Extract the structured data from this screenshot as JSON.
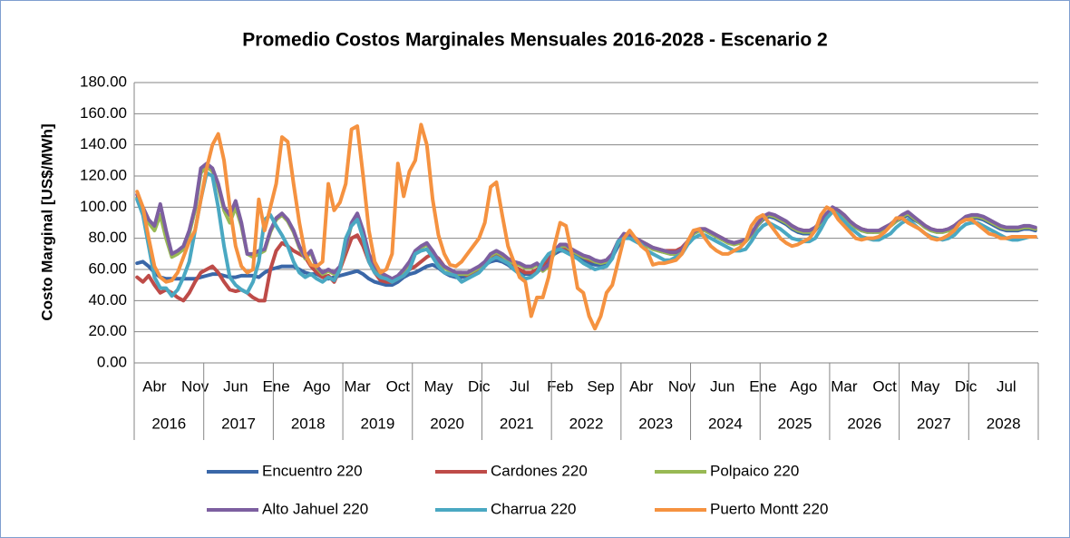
{
  "chart_data": {
    "type": "line",
    "title": "Promedio Costos Marginales Mensuales 2016-2028 - Escenario 2",
    "y_label": "Costo Marginal [US$/MWh]",
    "categories": [
      null,
      null,
      null,
      "Abr",
      null,
      null,
      null,
      null,
      null,
      null,
      "Nov",
      null,
      null,
      null,
      null,
      null,
      null,
      "Jun",
      null,
      null,
      null,
      null,
      null,
      null,
      "Ene",
      null,
      null,
      null,
      null,
      null,
      null,
      "Ago",
      null,
      null,
      null,
      null,
      null,
      null,
      "Mar",
      null,
      null,
      null,
      null,
      null,
      null,
      "Oct",
      null,
      null,
      null,
      null,
      null,
      null,
      "May",
      null,
      null,
      null,
      null,
      null,
      null,
      "Dic",
      null,
      null,
      null,
      null,
      null,
      null,
      "Jul",
      null,
      null,
      null,
      null,
      null,
      null,
      "Feb",
      null,
      null,
      null,
      null,
      null,
      null,
      "Sep",
      null,
      null,
      null,
      null,
      null,
      null,
      "Abr",
      null,
      null,
      null,
      null,
      null,
      null,
      "Nov",
      null,
      null,
      null,
      null,
      null,
      null,
      "Jun",
      null,
      null,
      null,
      null,
      null,
      null,
      "Ene",
      null,
      null,
      null,
      null,
      null,
      null,
      "Ago",
      null,
      null,
      null,
      null,
      null,
      null,
      "Mar",
      null,
      null,
      null,
      null,
      null,
      null,
      "Oct",
      null,
      null,
      null,
      null,
      null,
      null,
      "May",
      null,
      null,
      null,
      null,
      null,
      null,
      "Dic",
      null,
      null,
      null,
      null,
      null,
      null,
      "Jul",
      null,
      null,
      null,
      null,
      null
    ],
    "year_groups": [
      "2016",
      "2017",
      "2018",
      "2019",
      "2020",
      "2021",
      "2022",
      "2023",
      "2024",
      "2025",
      "2026",
      "2027",
      "2028"
    ],
    "ylim": [
      0,
      180
    ],
    "yticks": [
      {
        "value": 0,
        "label": "0.00"
      },
      {
        "value": 20,
        "label": "20.00"
      },
      {
        "value": 40,
        "label": "40.00"
      },
      {
        "value": 60,
        "label": "60.00"
      },
      {
        "value": 80,
        "label": "80.00"
      },
      {
        "value": 100,
        "label": "100.00"
      },
      {
        "value": 120,
        "label": "120.00"
      },
      {
        "value": 140,
        "label": "140.00"
      },
      {
        "value": 160,
        "label": "160.00"
      },
      {
        "value": 180,
        "label": "180.00"
      }
    ],
    "grid": true,
    "series": [
      {
        "name": "Encuentro 220",
        "color": "#3a67a8",
        "values": [
          64,
          65,
          62,
          58,
          55,
          54,
          54,
          54,
          54,
          54,
          54,
          55,
          56,
          57,
          57,
          56,
          55,
          55,
          56,
          56,
          56,
          55,
          58,
          60,
          61,
          62,
          62,
          62,
          60,
          58,
          57,
          57,
          55,
          54,
          55,
          56,
          57,
          58,
          59,
          57,
          54,
          52,
          51,
          50,
          50,
          52,
          55,
          57,
          58,
          60,
          62,
          63,
          61,
          58,
          56,
          55,
          55,
          56,
          58,
          60,
          63,
          65,
          66,
          65,
          63,
          60,
          58,
          57,
          57,
          58,
          62,
          66,
          70,
          72,
          72,
          70,
          68,
          66,
          64,
          63,
          63,
          64,
          68,
          75,
          82,
          83,
          80,
          78,
          76,
          74,
          72,
          71,
          70,
          70,
          72,
          78,
          83,
          85,
          85,
          83,
          81,
          79,
          78,
          77,
          77,
          78,
          82,
          88,
          92,
          94,
          93,
          91,
          89,
          86,
          84,
          83,
          83,
          85,
          90,
          95,
          98,
          97,
          94,
          90,
          87,
          85,
          84,
          84,
          84,
          86,
          88,
          91,
          93,
          95,
          92,
          90,
          87,
          85,
          84,
          84,
          85,
          87,
          90,
          92,
          93,
          93,
          92,
          90,
          88,
          86,
          85,
          85,
          85,
          86,
          86,
          85
        ]
      },
      {
        "name": "Cardones 220",
        "color": "#be4b48",
        "values": [
          55,
          52,
          56,
          50,
          45,
          47,
          45,
          42,
          40,
          45,
          52,
          58,
          60,
          62,
          58,
          52,
          47,
          46,
          47,
          45,
          42,
          40,
          40,
          60,
          72,
          77,
          75,
          72,
          70,
          68,
          62,
          58,
          55,
          56,
          52,
          60,
          70,
          80,
          82,
          75,
          65,
          58,
          53,
          52,
          52,
          54,
          56,
          60,
          62,
          65,
          68,
          70,
          67,
          62,
          59,
          58,
          58,
          56,
          58,
          60,
          64,
          67,
          69,
          68,
          65,
          62,
          60,
          58,
          58,
          60,
          63,
          67,
          72,
          74,
          74,
          72,
          70,
          68,
          66,
          65,
          65,
          66,
          70,
          78,
          82,
          82,
          80,
          78,
          76,
          74,
          73,
          72,
          72,
          72,
          74,
          78,
          84,
          86,
          86,
          84,
          82,
          80,
          78,
          77,
          78,
          79,
          82,
          88,
          93,
          95,
          94,
          92,
          90,
          88,
          86,
          85,
          85,
          86,
          91,
          96,
          99,
          98,
          95,
          91,
          88,
          86,
          85,
          84,
          85,
          87,
          89,
          92,
          94,
          96,
          93,
          91,
          88,
          86,
          85,
          85,
          86,
          88,
          91,
          93,
          94,
          94,
          93,
          91,
          89,
          87,
          86,
          86,
          86,
          87,
          87,
          86
        ]
      },
      {
        "name": "Polpaico 220",
        "color": "#98b954",
        "values": [
          106,
          98,
          90,
          85,
          95,
          80,
          68,
          70,
          73,
          83,
          98,
          122,
          126,
          123,
          113,
          98,
          90,
          100,
          88,
          70,
          68,
          70,
          72,
          84,
          92,
          95,
          91,
          84,
          74,
          67,
          71,
          61,
          57,
          59,
          57,
          61,
          74,
          89,
          95,
          84,
          69,
          61,
          57,
          55,
          53,
          55,
          59,
          64,
          71,
          74,
          76,
          71,
          65,
          61,
          59,
          57,
          57,
          57,
          59,
          61,
          64,
          69,
          71,
          69,
          66,
          64,
          63,
          61,
          61,
          63,
          59,
          62,
          71,
          75,
          75,
          72,
          70,
          68,
          67,
          65,
          64,
          65,
          69,
          77,
          82,
          81,
          79,
          77,
          75,
          73,
          72,
          71,
          70,
          70,
          72,
          77,
          83,
          85,
          85,
          83,
          81,
          79,
          77,
          76,
          77,
          78,
          82,
          88,
          93,
          95,
          94,
          92,
          90,
          87,
          85,
          84,
          84,
          86,
          90,
          95,
          99,
          97,
          94,
          90,
          87,
          85,
          84,
          84,
          84,
          86,
          88,
          91,
          94,
          96,
          93,
          90,
          87,
          85,
          84,
          84,
          85,
          87,
          90,
          93,
          94,
          94,
          93,
          91,
          89,
          87,
          86,
          86,
          86,
          87,
          87,
          86
        ]
      },
      {
        "name": "Alto Jahuel 220",
        "color": "#7d5fa0",
        "values": [
          108,
          100,
          92,
          88,
          102,
          85,
          70,
          72,
          75,
          85,
          100,
          125,
          128,
          125,
          115,
          100,
          95,
          104,
          90,
          70,
          70,
          72,
          73,
          85,
          93,
          96,
          92,
          85,
          75,
          68,
          72,
          62,
          58,
          60,
          58,
          62,
          75,
          90,
          96,
          85,
          70,
          62,
          58,
          56,
          54,
          56,
          60,
          65,
          72,
          75,
          77,
          72,
          66,
          62,
          60,
          58,
          58,
          58,
          60,
          62,
          65,
          70,
          72,
          70,
          67,
          65,
          64,
          62,
          62,
          64,
          60,
          63,
          72,
          76,
          76,
          73,
          71,
          69,
          68,
          66,
          65,
          66,
          70,
          78,
          83,
          82,
          80,
          78,
          76,
          74,
          73,
          72,
          71,
          71,
          73,
          78,
          84,
          86,
          86,
          84,
          82,
          80,
          78,
          77,
          78,
          79,
          83,
          89,
          94,
          96,
          95,
          93,
          91,
          88,
          86,
          85,
          85,
          87,
          91,
          96,
          100,
          98,
          95,
          91,
          88,
          86,
          85,
          85,
          85,
          87,
          89,
          92,
          95,
          97,
          94,
          91,
          88,
          86,
          85,
          85,
          86,
          88,
          91,
          94,
          95,
          95,
          94,
          92,
          90,
          88,
          87,
          87,
          87,
          88,
          88,
          87
        ]
      },
      {
        "name": "Charrua 220",
        "color": "#4aa8c2",
        "values": [
          105,
          95,
          75,
          55,
          48,
          48,
          43,
          47,
          55,
          65,
          85,
          105,
          122,
          120,
          100,
          75,
          55,
          50,
          47,
          45,
          52,
          65,
          92,
          95,
          88,
          82,
          75,
          65,
          58,
          55,
          57,
          54,
          52,
          55,
          53,
          60,
          80,
          88,
          92,
          80,
          65,
          58,
          55,
          54,
          52,
          54,
          56,
          60,
          70,
          72,
          73,
          68,
          62,
          58,
          57,
          56,
          52,
          54,
          56,
          58,
          62,
          66,
          68,
          66,
          64,
          60,
          57,
          54,
          55,
          58,
          65,
          70,
          72,
          73,
          71,
          69,
          67,
          64,
          62,
          60,
          61,
          62,
          67,
          78,
          80,
          80,
          78,
          76,
          72,
          70,
          68,
          66,
          66,
          68,
          70,
          76,
          80,
          82,
          82,
          80,
          78,
          76,
          74,
          72,
          72,
          73,
          78,
          84,
          88,
          90,
          88,
          86,
          83,
          80,
          79,
          78,
          78,
          80,
          86,
          93,
          97,
          95,
          91,
          87,
          84,
          81,
          80,
          79,
          79,
          81,
          83,
          87,
          90,
          92,
          89,
          86,
          83,
          81,
          80,
          79,
          80,
          82,
          86,
          89,
          90,
          90,
          88,
          86,
          84,
          82,
          80,
          79,
          79,
          80,
          81,
          81
        ]
      },
      {
        "name": "Puerto Montt 220",
        "color": "#f59240",
        "values": [
          110,
          100,
          80,
          62,
          55,
          52,
          53,
          58,
          68,
          78,
          85,
          105,
          125,
          140,
          147,
          130,
          100,
          75,
          62,
          58,
          60,
          105,
          85,
          100,
          115,
          145,
          142,
          115,
          90,
          70,
          63,
          62,
          65,
          115,
          98,
          103,
          115,
          150,
          152,
          120,
          85,
          65,
          58,
          60,
          70,
          128,
          107,
          123,
          130,
          153,
          140,
          105,
          82,
          70,
          63,
          62,
          65,
          70,
          75,
          80,
          90,
          113,
          116,
          95,
          75,
          65,
          55,
          52,
          30,
          42,
          42,
          55,
          75,
          90,
          88,
          70,
          48,
          45,
          30,
          22,
          30,
          45,
          50,
          65,
          80,
          85,
          80,
          75,
          72,
          63,
          64,
          64,
          65,
          66,
          70,
          78,
          85,
          86,
          80,
          75,
          72,
          70,
          70,
          72,
          74,
          78,
          88,
          93,
          95,
          90,
          85,
          80,
          77,
          75,
          76,
          78,
          80,
          85,
          95,
          100,
          98,
          92,
          88,
          84,
          80,
          79,
          80,
          80,
          81,
          84,
          88,
          93,
          93,
          90,
          88,
          86,
          83,
          80,
          79,
          80,
          82,
          85,
          90,
          92,
          92,
          89,
          86,
          83,
          82,
          80,
          80,
          81,
          81,
          81,
          81,
          81
        ]
      }
    ]
  }
}
